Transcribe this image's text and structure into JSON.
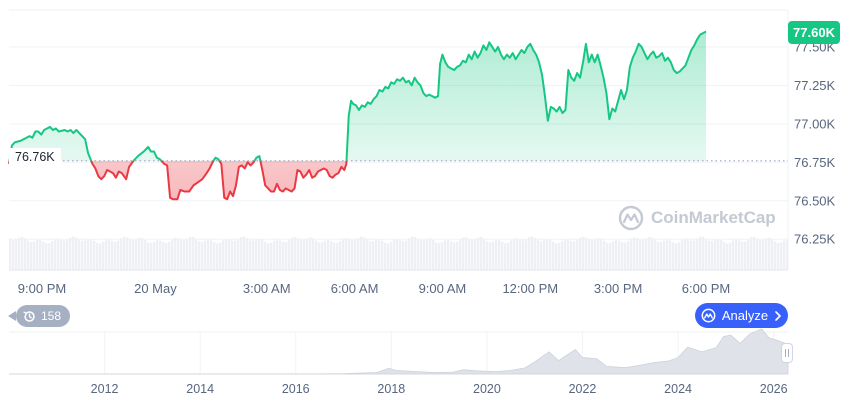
{
  "chart_data": {
    "type": "area",
    "y_ticks": [
      "77.50K",
      "77.25K",
      "77.00K",
      "76.75K",
      "76.50K",
      "76.25K"
    ],
    "y_tick_values": [
      77500,
      77250,
      77000,
      76750,
      76500,
      76250
    ],
    "ylim": [
      76050,
      77740
    ],
    "x_ticks": [
      "9:00 PM",
      "20 May",
      "3:00 AM",
      "6:00 AM",
      "9:00 AM",
      "12:00 PM",
      "3:00 PM",
      "6:00 PM"
    ],
    "x_hours": [
      0,
      24,
      6,
      9,
      12,
      15,
      18,
      21
    ],
    "xlim_hours": [
      -2.8,
      23.8
    ],
    "reference": {
      "value": 76760,
      "label": "76.76K"
    },
    "current_price": {
      "value": 77600,
      "label": "77.60K"
    },
    "colors": {
      "up": "#16c784",
      "down": "#ea3943",
      "up_fill": "#16c784",
      "down_fill": "#ea3943",
      "ref_line": "#a6b0c3"
    },
    "series": [
      {
        "values": [
          [
            -2.8,
            76740
          ],
          [
            -2.7,
            76860
          ],
          [
            -2.6,
            76880
          ],
          [
            -2.4,
            76890
          ],
          [
            -2.3,
            76900
          ],
          [
            -2.1,
            76920
          ],
          [
            -2.0,
            76910
          ],
          [
            -1.9,
            76950
          ],
          [
            -1.8,
            76950
          ],
          [
            -1.7,
            76930
          ],
          [
            -1.6,
            76960
          ],
          [
            -1.4,
            76980
          ],
          [
            -1.3,
            76960
          ],
          [
            -1.2,
            76970
          ],
          [
            -1.1,
            76950
          ],
          [
            -0.9,
            76960
          ],
          [
            -0.8,
            76950
          ],
          [
            -0.7,
            76960
          ],
          [
            -0.6,
            76940
          ],
          [
            -0.5,
            76960
          ],
          [
            -0.4,
            76940
          ],
          [
            -0.2,
            76900
          ],
          [
            -0.1,
            76810
          ],
          [
            0.05,
            76740
          ],
          [
            0.15,
            76710
          ],
          [
            0.25,
            76660
          ],
          [
            0.35,
            76640
          ],
          [
            0.45,
            76660
          ],
          [
            0.55,
            76700
          ],
          [
            0.65,
            76690
          ],
          [
            0.75,
            76680
          ],
          [
            0.85,
            76650
          ],
          [
            0.95,
            76690
          ],
          [
            1.05,
            76680
          ],
          [
            1.2,
            76640
          ],
          [
            1.3,
            76720
          ],
          [
            1.45,
            76760
          ],
          [
            1.6,
            76790
          ],
          [
            1.8,
            76820
          ],
          [
            1.95,
            76850
          ],
          [
            2.05,
            76820
          ],
          [
            2.15,
            76820
          ],
          [
            2.25,
            76780
          ],
          [
            2.35,
            76770
          ],
          [
            2.5,
            76740
          ],
          [
            2.6,
            76730
          ],
          [
            2.7,
            76520
          ],
          [
            2.8,
            76510
          ],
          [
            2.95,
            76510
          ],
          [
            3.05,
            76570
          ],
          [
            3.2,
            76560
          ],
          [
            3.35,
            76560
          ],
          [
            3.5,
            76600
          ],
          [
            3.65,
            76620
          ],
          [
            3.8,
            76640
          ],
          [
            3.95,
            76680
          ],
          [
            4.05,
            76710
          ],
          [
            4.15,
            76750
          ],
          [
            4.25,
            76780
          ],
          [
            4.35,
            76770
          ],
          [
            4.45,
            76740
          ],
          [
            4.55,
            76520
          ],
          [
            4.65,
            76510
          ],
          [
            4.75,
            76560
          ],
          [
            4.85,
            76530
          ],
          [
            4.95,
            76600
          ],
          [
            5.05,
            76720
          ],
          [
            5.15,
            76730
          ],
          [
            5.25,
            76710
          ],
          [
            5.35,
            76750
          ],
          [
            5.45,
            76730
          ],
          [
            5.55,
            76750
          ],
          [
            5.65,
            76780
          ],
          [
            5.75,
            76790
          ],
          [
            5.85,
            76700
          ],
          [
            5.95,
            76600
          ],
          [
            6.05,
            76580
          ],
          [
            6.15,
            76560
          ],
          [
            6.25,
            76560
          ],
          [
            6.35,
            76610
          ],
          [
            6.45,
            76570
          ],
          [
            6.55,
            76560
          ],
          [
            6.65,
            76580
          ],
          [
            6.75,
            76570
          ],
          [
            6.85,
            76560
          ],
          [
            6.95,
            76580
          ],
          [
            7.05,
            76700
          ],
          [
            7.15,
            76690
          ],
          [
            7.25,
            76650
          ],
          [
            7.35,
            76670
          ],
          [
            7.45,
            76700
          ],
          [
            7.55,
            76650
          ],
          [
            7.65,
            76660
          ],
          [
            7.75,
            76690
          ],
          [
            7.85,
            76700
          ],
          [
            7.95,
            76710
          ],
          [
            8.05,
            76700
          ],
          [
            8.15,
            76660
          ],
          [
            8.25,
            76650
          ],
          [
            8.35,
            76670
          ],
          [
            8.45,
            76680
          ],
          [
            8.55,
            76720
          ],
          [
            8.65,
            76700
          ],
          [
            8.72,
            76740
          ],
          [
            8.8,
            77050
          ],
          [
            8.88,
            77150
          ],
          [
            8.95,
            77130
          ],
          [
            9.05,
            77120
          ],
          [
            9.15,
            77090
          ],
          [
            9.25,
            77120
          ],
          [
            9.35,
            77110
          ],
          [
            9.45,
            77140
          ],
          [
            9.55,
            77130
          ],
          [
            9.65,
            77160
          ],
          [
            9.75,
            77180
          ],
          [
            9.85,
            77220
          ],
          [
            9.95,
            77210
          ],
          [
            10.05,
            77240
          ],
          [
            10.15,
            77230
          ],
          [
            10.25,
            77270
          ],
          [
            10.35,
            77260
          ],
          [
            10.45,
            77290
          ],
          [
            10.55,
            77280
          ],
          [
            10.65,
            77300
          ],
          [
            10.75,
            77270
          ],
          [
            10.85,
            77280
          ],
          [
            10.95,
            77250
          ],
          [
            11.05,
            77300
          ],
          [
            11.15,
            77270
          ],
          [
            11.25,
            77250
          ],
          [
            11.35,
            77200
          ],
          [
            11.45,
            77180
          ],
          [
            11.55,
            77190
          ],
          [
            11.65,
            77180
          ],
          [
            11.75,
            77170
          ],
          [
            11.85,
            77180
          ],
          [
            11.92,
            77390
          ],
          [
            12.0,
            77450
          ],
          [
            12.1,
            77400
          ],
          [
            12.2,
            77370
          ],
          [
            12.3,
            77360
          ],
          [
            12.4,
            77350
          ],
          [
            12.5,
            77370
          ],
          [
            12.6,
            77380
          ],
          [
            12.7,
            77410
          ],
          [
            12.8,
            77400
          ],
          [
            12.9,
            77450
          ],
          [
            13.0,
            77420
          ],
          [
            13.1,
            77470
          ],
          [
            13.2,
            77430
          ],
          [
            13.3,
            77460
          ],
          [
            13.4,
            77510
          ],
          [
            13.5,
            77480
          ],
          [
            13.6,
            77530
          ],
          [
            13.7,
            77500
          ],
          [
            13.8,
            77470
          ],
          [
            13.9,
            77500
          ],
          [
            14.0,
            77450
          ],
          [
            14.1,
            77420
          ],
          [
            14.2,
            77450
          ],
          [
            14.3,
            77430
          ],
          [
            14.4,
            77460
          ],
          [
            14.5,
            77420
          ],
          [
            14.6,
            77450
          ],
          [
            14.7,
            77480
          ],
          [
            14.8,
            77460
          ],
          [
            14.9,
            77500
          ],
          [
            15.0,
            77520
          ],
          [
            15.1,
            77480
          ],
          [
            15.2,
            77450
          ],
          [
            15.3,
            77400
          ],
          [
            15.4,
            77320
          ],
          [
            15.5,
            77180
          ],
          [
            15.6,
            77020
          ],
          [
            15.7,
            77110
          ],
          [
            15.8,
            77100
          ],
          [
            15.9,
            77080
          ],
          [
            16.0,
            77110
          ],
          [
            16.1,
            77070
          ],
          [
            16.2,
            77090
          ],
          [
            16.3,
            77350
          ],
          [
            16.4,
            77300
          ],
          [
            16.5,
            77280
          ],
          [
            16.6,
            77330
          ],
          [
            16.7,
            77300
          ],
          [
            16.8,
            77400
          ],
          [
            16.9,
            77520
          ],
          [
            17.0,
            77400
          ],
          [
            17.1,
            77450
          ],
          [
            17.2,
            77400
          ],
          [
            17.3,
            77450
          ],
          [
            17.4,
            77380
          ],
          [
            17.5,
            77300
          ],
          [
            17.6,
            77200
          ],
          [
            17.7,
            77030
          ],
          [
            17.8,
            77100
          ],
          [
            17.9,
            77080
          ],
          [
            18.0,
            77150
          ],
          [
            18.1,
            77220
          ],
          [
            18.2,
            77160
          ],
          [
            18.3,
            77220
          ],
          [
            18.4,
            77370
          ],
          [
            18.5,
            77430
          ],
          [
            18.6,
            77470
          ],
          [
            18.7,
            77520
          ],
          [
            18.8,
            77500
          ],
          [
            18.9,
            77460
          ],
          [
            19.0,
            77420
          ],
          [
            19.1,
            77450
          ],
          [
            19.2,
            77470
          ],
          [
            19.3,
            77430
          ],
          [
            19.4,
            77440
          ],
          [
            19.5,
            77460
          ],
          [
            19.6,
            77410
          ],
          [
            19.7,
            77430
          ],
          [
            19.8,
            77400
          ],
          [
            19.9,
            77350
          ],
          [
            20.0,
            77330
          ],
          [
            20.1,
            77340
          ],
          [
            20.2,
            77360
          ],
          [
            20.3,
            77380
          ],
          [
            20.4,
            77430
          ],
          [
            20.5,
            77480
          ],
          [
            20.6,
            77510
          ],
          [
            20.7,
            77550
          ],
          [
            20.8,
            77580
          ],
          [
            20.9,
            77590
          ],
          [
            21.0,
            77600
          ]
        ]
      }
    ]
  },
  "overview": {
    "year_labels": [
      "2012",
      "2014",
      "2016",
      "2018",
      "2020",
      "2022",
      "2024",
      "2026"
    ],
    "years": [
      2012,
      2014,
      2016,
      2018,
      2020,
      2022,
      2024,
      2026
    ],
    "xlim_years": [
      2010.0,
      2026.3
    ],
    "ylim": [
      0,
      110000
    ],
    "series": [
      [
        2010.0,
        0
      ],
      [
        2016.5,
        150
      ],
      [
        2017.0,
        800
      ],
      [
        2017.7,
        4000
      ],
      [
        2017.95,
        15000
      ],
      [
        2018.1,
        9000
      ],
      [
        2018.5,
        6500
      ],
      [
        2018.9,
        3800
      ],
      [
        2019.3,
        5000
      ],
      [
        2019.5,
        11000
      ],
      [
        2019.8,
        8000
      ],
      [
        2020.2,
        6000
      ],
      [
        2020.5,
        9500
      ],
      [
        2020.8,
        16000
      ],
      [
        2021.0,
        32000
      ],
      [
        2021.3,
        58000
      ],
      [
        2021.5,
        35000
      ],
      [
        2021.85,
        64000
      ],
      [
        2022.0,
        43000
      ],
      [
        2022.3,
        40000
      ],
      [
        2022.5,
        20000
      ],
      [
        2022.9,
        16500
      ],
      [
        2023.2,
        23000
      ],
      [
        2023.5,
        30000
      ],
      [
        2023.8,
        34000
      ],
      [
        2024.0,
        43000
      ],
      [
        2024.2,
        70000
      ],
      [
        2024.5,
        58000
      ],
      [
        2024.8,
        69000
      ],
      [
        2024.95,
        98000
      ],
      [
        2025.1,
        102000
      ],
      [
        2025.3,
        80000
      ],
      [
        2025.5,
        105000
      ],
      [
        2025.75,
        118000
      ],
      [
        2025.9,
        95000
      ],
      [
        2026.1,
        87000
      ],
      [
        2026.3,
        77600
      ]
    ]
  },
  "ui": {
    "watermark": "CoinMarketCap",
    "hover_count": "158",
    "analyze_label": "Analyze"
  }
}
